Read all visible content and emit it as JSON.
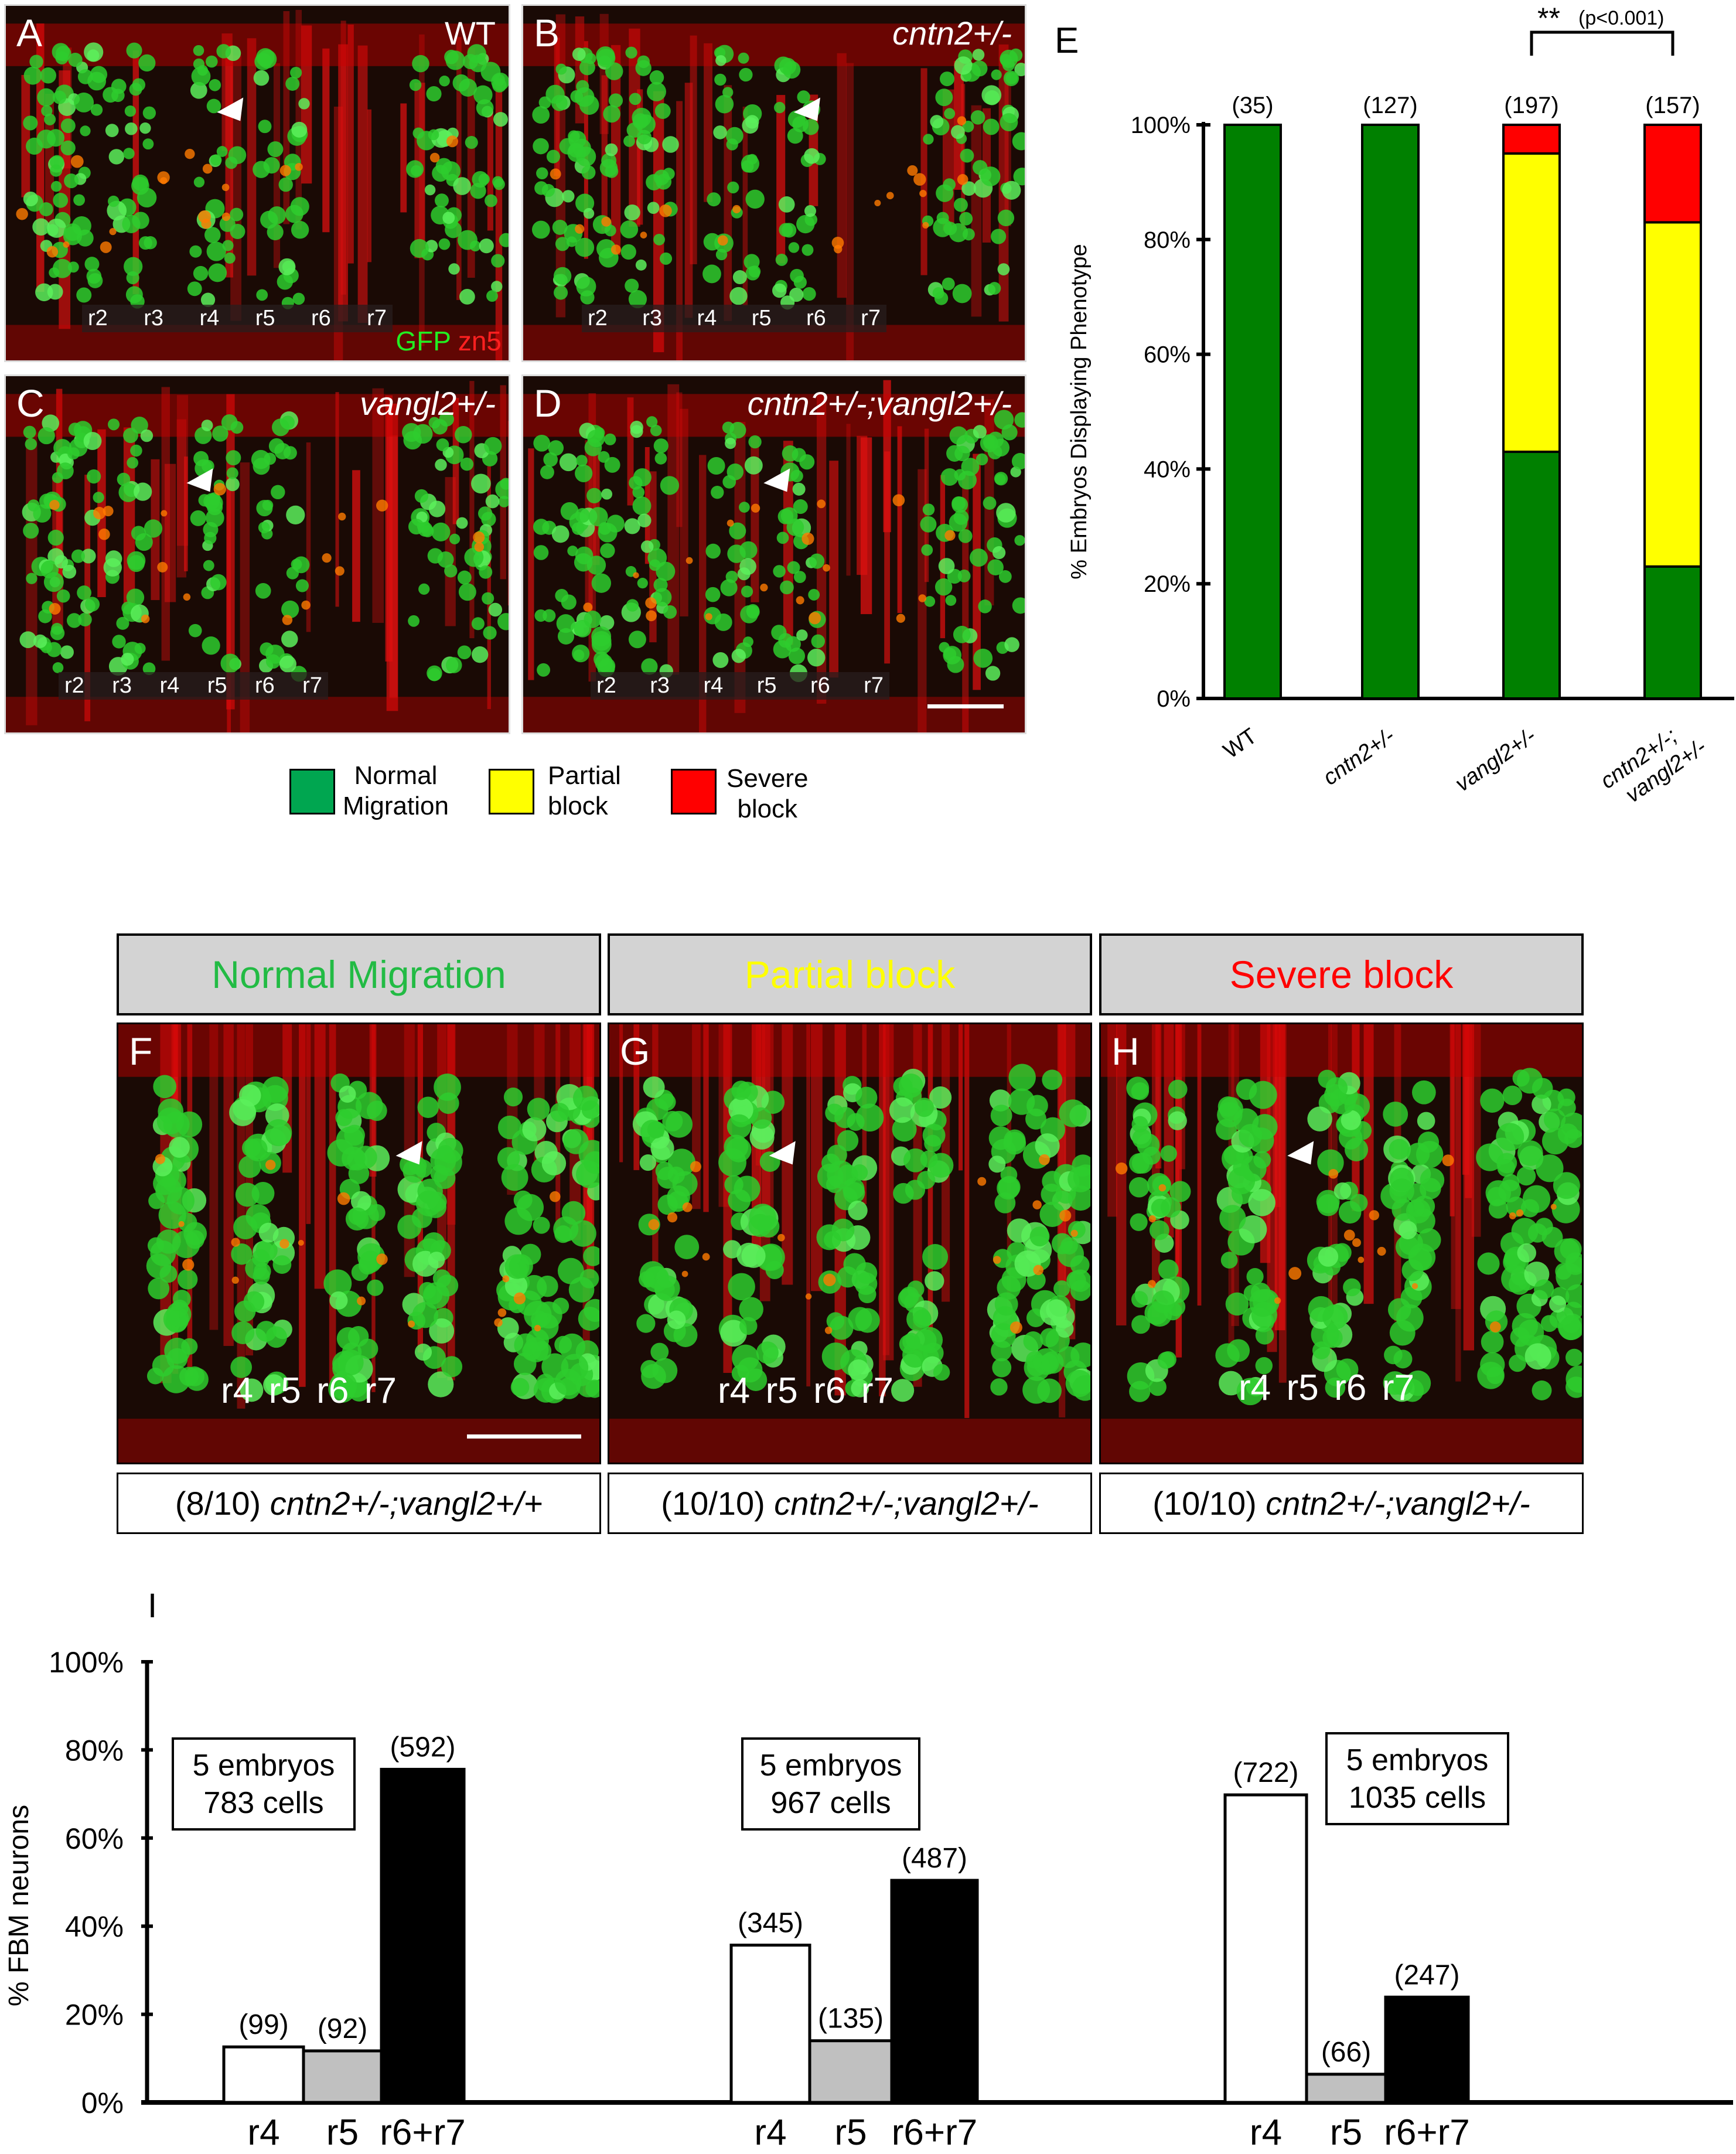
{
  "panels_top": [
    {
      "letter": "A",
      "genotype": "WT",
      "rhombomeres": [
        "r2",
        "r3",
        "r4",
        "r5",
        "r6",
        "r7"
      ],
      "stain_labels": [
        "GFP",
        "zn5"
      ]
    },
    {
      "letter": "B",
      "genotype": "cntn2+/-",
      "rhombomeres": [
        "r2",
        "r3",
        "r4",
        "r5",
        "r6",
        "r7"
      ]
    },
    {
      "letter": "C",
      "genotype": "vangl2+/-",
      "rhombomeres": [
        "r2",
        "r3",
        "r4",
        "r5",
        "r6",
        "r7"
      ]
    },
    {
      "letter": "D",
      "genotype": "cntn2+/-;vangl2+/-",
      "rhombomeres": [
        "r2",
        "r3",
        "r4",
        "r5",
        "r6",
        "r7"
      ]
    }
  ],
  "legend": [
    {
      "label_line1": "Normal",
      "label_line2": "Migration",
      "color": "#00a650"
    },
    {
      "label_line1": "Partial",
      "label_line2": "block",
      "color": "#ffff00"
    },
    {
      "label_line1": "Severe",
      "label_line2": "block",
      "color": "#ff0000"
    }
  ],
  "panels_bottom": [
    {
      "header": "Normal Migration",
      "header_color": "#22bb44",
      "letter": "F",
      "rhombomeres": [
        "r4",
        "r5",
        "r6",
        "r7"
      ],
      "caption_count": "(8/10) ",
      "caption_genotype": "cntn2+/-;vangl2+/+"
    },
    {
      "header": "Partial block",
      "header_color": "#ffff00",
      "letter": "G",
      "rhombomeres": [
        "r4",
        "r5",
        "r6",
        "r7"
      ],
      "caption_count": "(10/10) ",
      "caption_genotype": "cntn2+/-;vangl2+/-"
    },
    {
      "header": "Severe block",
      "header_color": "#ff0000",
      "letter": "H",
      "rhombomeres": [
        "r4",
        "r5",
        "r6",
        "r7"
      ],
      "caption_count": "(10/10) ",
      "caption_genotype": "cntn2+/-;vangl2+/-"
    }
  ],
  "chart_data": [
    {
      "panel": "E",
      "type": "bar",
      "stacked": true,
      "categories": [
        "WT",
        "cntn2+/-",
        "vangl2+/-",
        "cntn2+/-; vangl2+/-"
      ],
      "n_labels": [
        "(35)",
        "(127)",
        "(197)",
        "(157)"
      ],
      "series": [
        {
          "name": "Normal Migration",
          "color": "#008000",
          "values": [
            100,
            100,
            43,
            23
          ]
        },
        {
          "name": "Partial block",
          "color": "#ffff00",
          "values": [
            0,
            0,
            52,
            60
          ]
        },
        {
          "name": "Severe block",
          "color": "#ff0000",
          "values": [
            0,
            0,
            5,
            17
          ]
        }
      ],
      "ylabel": "% Embryos Displaying Phenotype",
      "ylim": [
        0,
        100
      ],
      "yticks": [
        "0%",
        "20%",
        "40%",
        "60%",
        "80%",
        "100%"
      ],
      "annotation": {
        "stars": "**",
        "text": "(p<0.001)",
        "between": [
          "vangl2+/-",
          "cntn2+/-; vangl2+/-"
        ]
      }
    },
    {
      "panel": "I",
      "type": "bar",
      "ylabel": "% FBM neurons",
      "ylim": [
        0,
        100
      ],
      "yticks": [
        "0%",
        "20%",
        "40%",
        "60%",
        "80%",
        "100%"
      ],
      "groups": [
        {
          "box_line1": "5 embryos",
          "box_line2": "783 cells",
          "bars": [
            {
              "label": "r4",
              "value": 12.6,
              "count": "(99)",
              "color": "#ffffff"
            },
            {
              "label": "r5",
              "value": 11.7,
              "count": "(92)",
              "color": "#c0c0c0"
            },
            {
              "label": "r6+r7",
              "value": 75.6,
              "count": "(592)",
              "color": "#000000"
            }
          ]
        },
        {
          "box_line1": "5 embryos",
          "box_line2": "967 cells",
          "bars": [
            {
              "label": "r4",
              "value": 35.7,
              "count": "(345)",
              "color": "#ffffff"
            },
            {
              "label": "r5",
              "value": 14.0,
              "count": "(135)",
              "color": "#c0c0c0"
            },
            {
              "label": "r6+r7",
              "value": 50.4,
              "count": "(487)",
              "color": "#000000"
            }
          ]
        },
        {
          "box_line1": "5 embryos",
          "box_line2": "1035 cells",
          "bars": [
            {
              "label": "r4",
              "value": 69.8,
              "count": "(722)",
              "color": "#ffffff"
            },
            {
              "label": "r5",
              "value": 6.4,
              "count": "(66)",
              "color": "#c0c0c0"
            },
            {
              "label": "r6+r7",
              "value": 23.9,
              "count": "(247)",
              "color": "#000000"
            }
          ]
        }
      ]
    }
  ],
  "labels": {
    "E": "E",
    "I": "I"
  }
}
